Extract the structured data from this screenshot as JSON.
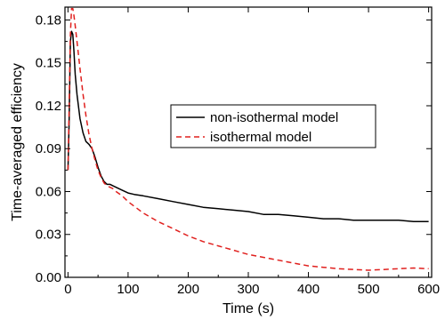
{
  "chart_data": {
    "type": "line",
    "title": "",
    "xlabel": "Time (s)",
    "ylabel": "Time-averaged efficiency",
    "xlim": [
      -5,
      605
    ],
    "ylim": [
      0.0,
      0.189
    ],
    "xticks": [
      0,
      100,
      200,
      300,
      400,
      500,
      600
    ],
    "xtick_labels": [
      "0",
      "100",
      "200",
      "300",
      "400",
      "500",
      "600"
    ],
    "yticks": [
      0.0,
      0.03,
      0.06,
      0.09,
      0.12,
      0.15,
      0.18
    ],
    "ytick_labels": [
      "0.00",
      "0.03",
      "0.06",
      "0.09",
      "0.12",
      "0.15",
      "0.18"
    ],
    "grid": false,
    "legend_position": "center-right",
    "series": [
      {
        "name": "non-isothermal model",
        "color": "#000000",
        "style": "solid",
        "x": [
          0,
          2,
          4,
          6,
          8,
          10,
          12,
          15,
          18,
          20,
          25,
          30,
          35,
          40,
          45,
          50,
          55,
          60,
          65,
          70,
          75,
          80,
          90,
          100,
          110,
          125,
          150,
          175,
          200,
          225,
          250,
          275,
          300,
          325,
          350,
          375,
          400,
          425,
          450,
          475,
          500,
          525,
          550,
          575,
          600
        ],
        "y": [
          0.075,
          0.11,
          0.165,
          0.172,
          0.17,
          0.158,
          0.142,
          0.128,
          0.118,
          0.111,
          0.101,
          0.095,
          0.093,
          0.09,
          0.084,
          0.077,
          0.071,
          0.067,
          0.065,
          0.065,
          0.064,
          0.063,
          0.061,
          0.059,
          0.058,
          0.057,
          0.055,
          0.053,
          0.051,
          0.049,
          0.048,
          0.047,
          0.046,
          0.044,
          0.044,
          0.043,
          0.042,
          0.041,
          0.041,
          0.04,
          0.04,
          0.04,
          0.04,
          0.039,
          0.039
        ]
      },
      {
        "name": "isothermal model",
        "color": "#e0201e",
        "style": "dashed",
        "x": [
          0,
          2,
          4,
          6,
          8,
          10,
          12,
          15,
          20,
          25,
          30,
          35,
          40,
          45,
          50,
          55,
          60,
          65,
          70,
          75,
          80,
          90,
          100,
          125,
          150,
          175,
          200,
          225,
          250,
          275,
          300,
          325,
          350,
          375,
          400,
          425,
          450,
          475,
          500,
          525,
          550,
          575,
          600
        ],
        "y": [
          0.075,
          0.12,
          0.17,
          0.188,
          0.188,
          0.183,
          0.176,
          0.165,
          0.146,
          0.128,
          0.113,
          0.1,
          0.09,
          0.082,
          0.075,
          0.07,
          0.066,
          0.064,
          0.063,
          0.062,
          0.06,
          0.057,
          0.053,
          0.045,
          0.039,
          0.034,
          0.029,
          0.025,
          0.022,
          0.019,
          0.016,
          0.014,
          0.012,
          0.01,
          0.008,
          0.007,
          0.006,
          0.0055,
          0.005,
          0.0055,
          0.006,
          0.0065,
          0.006
        ]
      }
    ]
  }
}
